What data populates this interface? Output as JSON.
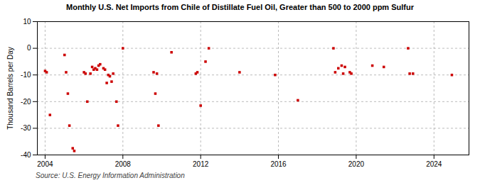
{
  "chart_data": {
    "type": "scatter",
    "title": "Monthly U.S. Net Imports from Chile of Distillate Fuel Oil, Greater than 500 to 2000 ppm Sulfur",
    "ylabel": "Thousand Barrels per Day",
    "source": "Source: U.S. Energy Information Administration",
    "color": "#cc0000",
    "marker": "square",
    "grid": true,
    "xlim": [
      2003.6,
      2025.8
    ],
    "xticks": [
      2004,
      2008,
      2012,
      2016,
      2020,
      2024
    ],
    "ylim": [
      -40,
      10
    ],
    "yticks": [
      -40,
      -30,
      -20,
      -10,
      0,
      10
    ],
    "x": [
      2004.0,
      2004.08,
      2004.25,
      2005.0,
      2005.08,
      2005.17,
      2005.25,
      2005.42,
      2005.5,
      2006.0,
      2006.08,
      2006.17,
      2006.33,
      2006.42,
      2006.5,
      2006.58,
      2006.67,
      2006.75,
      2006.83,
      2007.0,
      2007.08,
      2007.17,
      2007.25,
      2007.33,
      2007.42,
      2007.5,
      2007.67,
      2007.75,
      2008.0,
      2009.58,
      2009.67,
      2009.75,
      2009.83,
      2010.5,
      2011.75,
      2011.83,
      2012.0,
      2012.25,
      2012.42,
      2014.0,
      2015.83,
      2017.0,
      2018.83,
      2018.92,
      2019.08,
      2019.25,
      2019.33,
      2019.42,
      2019.67,
      2019.75,
      2020.83,
      2021.42,
      2022.67,
      2022.75,
      2022.92,
      2024.92
    ],
    "values": [
      -8.5,
      -9.0,
      -25.0,
      -2.5,
      -9.0,
      -17.0,
      -29.0,
      -37.5,
      -38.5,
      -9.0,
      -9.5,
      -20.0,
      -9.5,
      -7.0,
      -8.0,
      -7.5,
      -8.0,
      -6.5,
      -6.0,
      -7.5,
      -8.0,
      -13.0,
      -10.0,
      -10.5,
      -12.5,
      -9.5,
      -20.0,
      -29.0,
      0.0,
      -9.0,
      -17.0,
      -9.5,
      -29.0,
      -1.5,
      -9.5,
      -9.0,
      -21.5,
      -5.0,
      0.0,
      -9.0,
      -10.0,
      -19.5,
      0.0,
      -9.0,
      -7.5,
      -6.5,
      -9.5,
      -7.0,
      -9.0,
      -9.5,
      -6.5,
      -7.0,
      0.0,
      -9.5,
      -9.5,
      -10.0
    ]
  }
}
